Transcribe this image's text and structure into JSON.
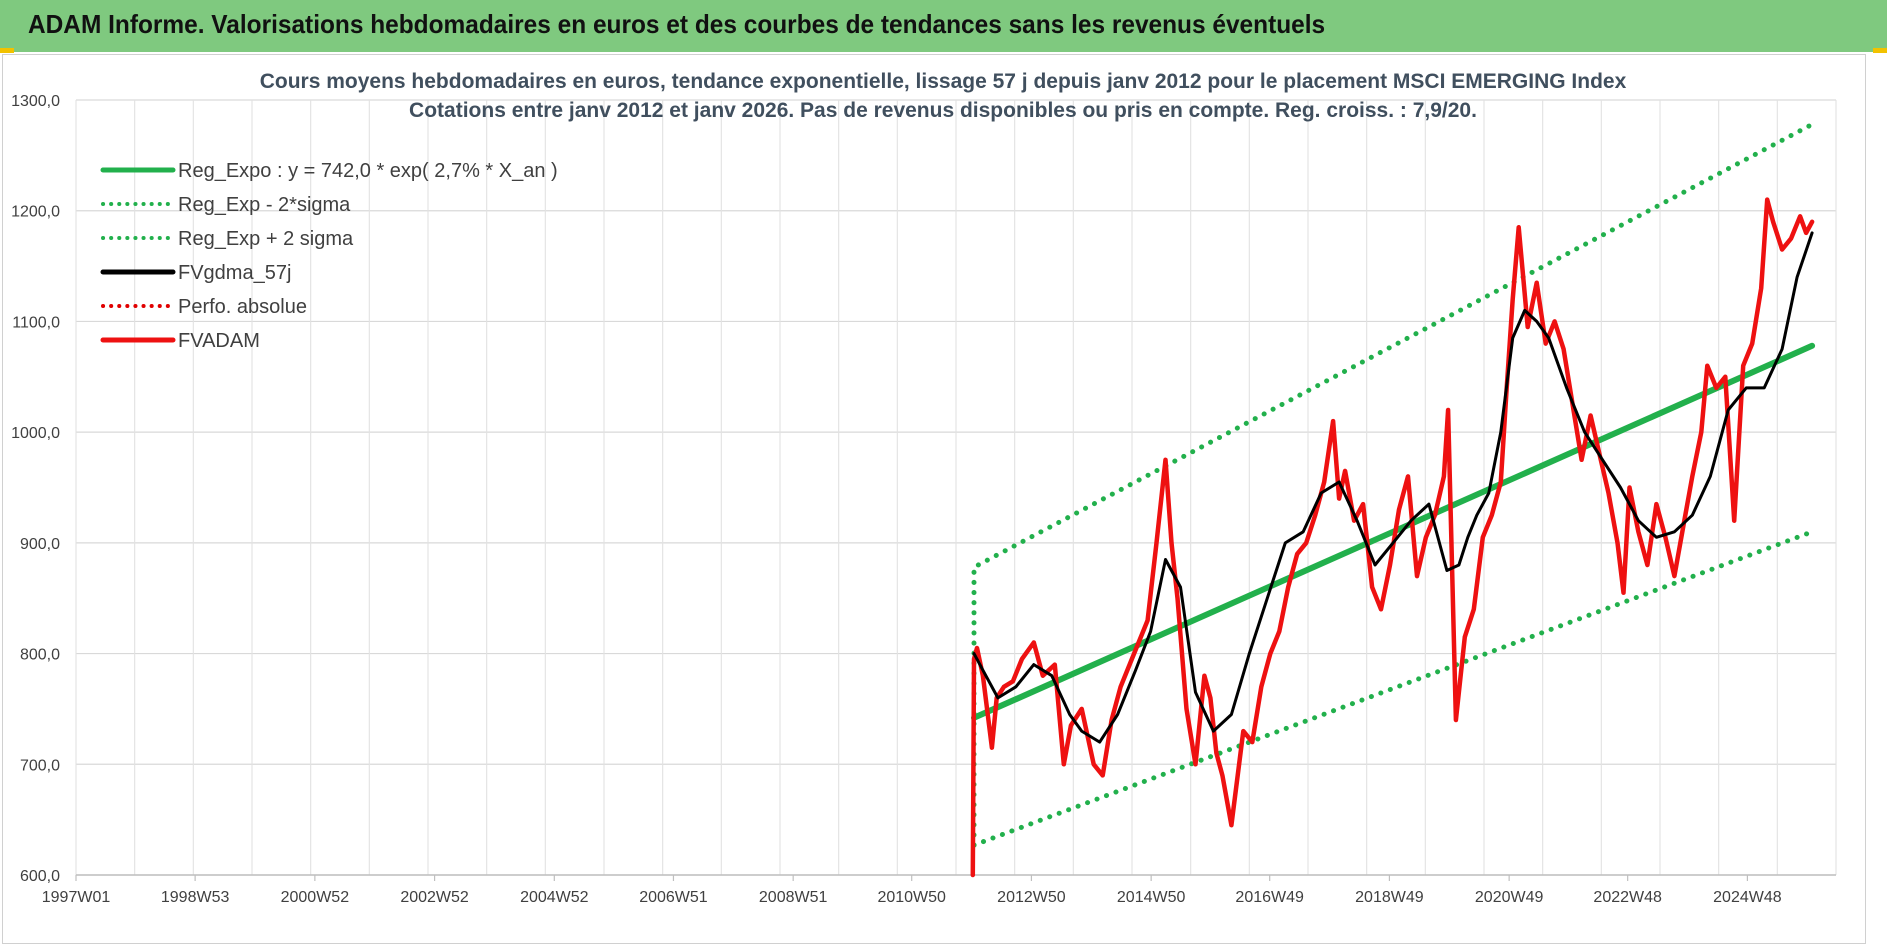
{
  "header": {
    "title": "ADAM Informe. Valorisations hebdomadaires en euros et des courbes de tendances sans les revenus éventuels"
  },
  "chart_data": {
    "type": "line",
    "title": "Cours moyens hebdomadaires en euros, tendance exponentielle, lissage 57 j depuis janv 2012 pour le placement MSCI EMERGING Index",
    "subtitle": "Cotations entre janv 2012 et janv 2026. Pas de revenus disponibles ou pris en compte. Reg. croiss. : 7,9/20.",
    "xlabel": "",
    "ylabel": "",
    "x_axis": {
      "type": "time",
      "range": [
        "1997W01",
        "2026W02"
      ]
    },
    "ylim": [
      600,
      1300
    ],
    "y_ticks": [
      {
        "value": 600,
        "label": "600,0"
      },
      {
        "value": 700,
        "label": "700,0"
      },
      {
        "value": 800,
        "label": "800,0"
      },
      {
        "value": 900,
        "label": "900,0"
      },
      {
        "value": 1000,
        "label": "1000,0"
      },
      {
        "value": 1100,
        "label": "1100,0"
      },
      {
        "value": 1200,
        "label": "1200,0"
      },
      {
        "value": 1300,
        "label": "1300,0"
      }
    ],
    "x_ticks": [
      {
        "t": 1997.0,
        "label": "1997W01"
      },
      {
        "t": 1998.99,
        "label": "1998W53"
      },
      {
        "t": 2000.99,
        "label": "2000W52"
      },
      {
        "t": 2002.99,
        "label": "2002W52"
      },
      {
        "t": 2004.99,
        "label": "2004W52"
      },
      {
        "t": 2006.98,
        "label": "2006W51"
      },
      {
        "t": 2008.98,
        "label": "2008W51"
      },
      {
        "t": 2010.96,
        "label": "2010W50"
      },
      {
        "t": 2012.96,
        "label": "2012W50"
      },
      {
        "t": 2014.96,
        "label": "2014W50"
      },
      {
        "t": 2016.94,
        "label": "2016W49"
      },
      {
        "t": 2018.94,
        "label": "2018W49"
      },
      {
        "t": 2020.94,
        "label": "2020W49"
      },
      {
        "t": 2022.92,
        "label": "2022W48"
      },
      {
        "t": 2024.92,
        "label": "2024W48"
      }
    ],
    "grid": true,
    "legend_position": "top-left",
    "series": [
      {
        "name": "Reg_Expo : y = 742,0 * exp( 2,7% *  X_an )",
        "color": "#22b04c",
        "style": "solid",
        "x": [
          2012.0,
          2026.0
        ],
        "y": [
          742,
          1078
        ]
      },
      {
        "name": "Reg_Exp - 2*sigma",
        "color": "#22b04c",
        "style": "dotted",
        "x": [
          2012.0,
          2026.0
        ],
        "y": [
          627,
          910
        ]
      },
      {
        "name": "Reg_Exp + 2 sigma",
        "color": "#22b04c",
        "style": "dotted",
        "x": [
          2012.0,
          2012.0,
          2026.0
        ],
        "y": [
          627,
          878,
          1278
        ]
      },
      {
        "name": "FVgdma_57j",
        "color": "#000000",
        "style": "solid",
        "x": [
          2012.0,
          2012.15,
          2012.4,
          2012.7,
          2013.0,
          2013.3,
          2013.6,
          2013.8,
          2014.1,
          2014.4,
          2014.7,
          2014.95,
          2015.2,
          2015.45,
          2015.7,
          2016.0,
          2016.3,
          2016.6,
          2016.9,
          2017.2,
          2017.5,
          2017.8,
          2018.1,
          2018.4,
          2018.7,
          2019.0,
          2019.3,
          2019.6,
          2019.9,
          2020.1,
          2020.25,
          2020.4,
          2020.6,
          2020.8,
          2021.0,
          2021.2,
          2021.4,
          2021.6,
          2021.9,
          2022.2,
          2022.5,
          2022.8,
          2023.1,
          2023.4,
          2023.7,
          2024.0,
          2024.3,
          2024.6,
          2024.9,
          2025.2,
          2025.5,
          2025.75,
          2026.0
        ],
        "y": [
          800,
          785,
          760,
          770,
          790,
          780,
          745,
          730,
          720,
          745,
          785,
          820,
          885,
          860,
          765,
          730,
          745,
          800,
          850,
          900,
          910,
          945,
          955,
          920,
          880,
          900,
          920,
          935,
          875,
          880,
          905,
          925,
          945,
          1000,
          1085,
          1110,
          1100,
          1085,
          1040,
          1000,
          975,
          950,
          920,
          905,
          910,
          925,
          960,
          1020,
          1040,
          1040,
          1075,
          1140,
          1180
        ]
      },
      {
        "name": "Perfo. absolue",
        "color": "#e00000",
        "style": "dotted",
        "x": [],
        "y": []
      },
      {
        "name": "FVADAM",
        "color": "#ee1111",
        "style": "solid",
        "x": [
          2011.98,
          2012.0,
          2012.05,
          2012.15,
          2012.3,
          2012.38,
          2012.5,
          2012.65,
          2012.8,
          2013.0,
          2013.15,
          2013.35,
          2013.5,
          2013.62,
          2013.8,
          2014.0,
          2014.15,
          2014.3,
          2014.45,
          2014.6,
          2014.75,
          2014.9,
          2015.05,
          2015.2,
          2015.3,
          2015.4,
          2015.55,
          2015.7,
          2015.85,
          2015.95,
          2016.05,
          2016.15,
          2016.3,
          2016.5,
          2016.65,
          2016.8,
          2016.95,
          2017.1,
          2017.25,
          2017.4,
          2017.55,
          2017.7,
          2017.85,
          2018.0,
          2018.1,
          2018.2,
          2018.35,
          2018.5,
          2018.65,
          2018.8,
          2018.95,
          2019.1,
          2019.25,
          2019.4,
          2019.55,
          2019.7,
          2019.85,
          2019.92,
          2020.05,
          2020.2,
          2020.35,
          2020.5,
          2020.65,
          2020.8,
          2020.9,
          2021.0,
          2021.1,
          2021.25,
          2021.4,
          2021.55,
          2021.7,
          2021.85,
          2022.0,
          2022.15,
          2022.3,
          2022.45,
          2022.6,
          2022.75,
          2022.85,
          2022.95,
          2023.1,
          2023.25,
          2023.4,
          2023.55,
          2023.7,
          2023.85,
          2024.0,
          2024.15,
          2024.25,
          2024.4,
          2024.55,
          2024.7,
          2024.85,
          2025.0,
          2025.15,
          2025.25,
          2025.35,
          2025.5,
          2025.65,
          2025.8,
          2025.9,
          2026.0
        ],
        "y": [
          600,
          795,
          805,
          780,
          715,
          760,
          770,
          775,
          795,
          810,
          780,
          790,
          700,
          735,
          750,
          700,
          690,
          740,
          770,
          790,
          810,
          830,
          900,
          975,
          900,
          850,
          750,
          700,
          780,
          760,
          710,
          690,
          645,
          730,
          720,
          770,
          800,
          820,
          860,
          890,
          900,
          925,
          955,
          1010,
          940,
          965,
          920,
          935,
          860,
          840,
          880,
          930,
          960,
          870,
          905,
          925,
          960,
          1020,
          740,
          815,
          840,
          905,
          925,
          955,
          1040,
          1120,
          1185,
          1095,
          1135,
          1080,
          1100,
          1075,
          1025,
          975,
          1015,
          980,
          945,
          900,
          855,
          950,
          910,
          880,
          935,
          905,
          870,
          915,
          960,
          1000,
          1060,
          1040,
          1050,
          920,
          1060,
          1080,
          1130,
          1210,
          1190,
          1165,
          1175,
          1195,
          1180,
          1190
        ]
      }
    ]
  }
}
